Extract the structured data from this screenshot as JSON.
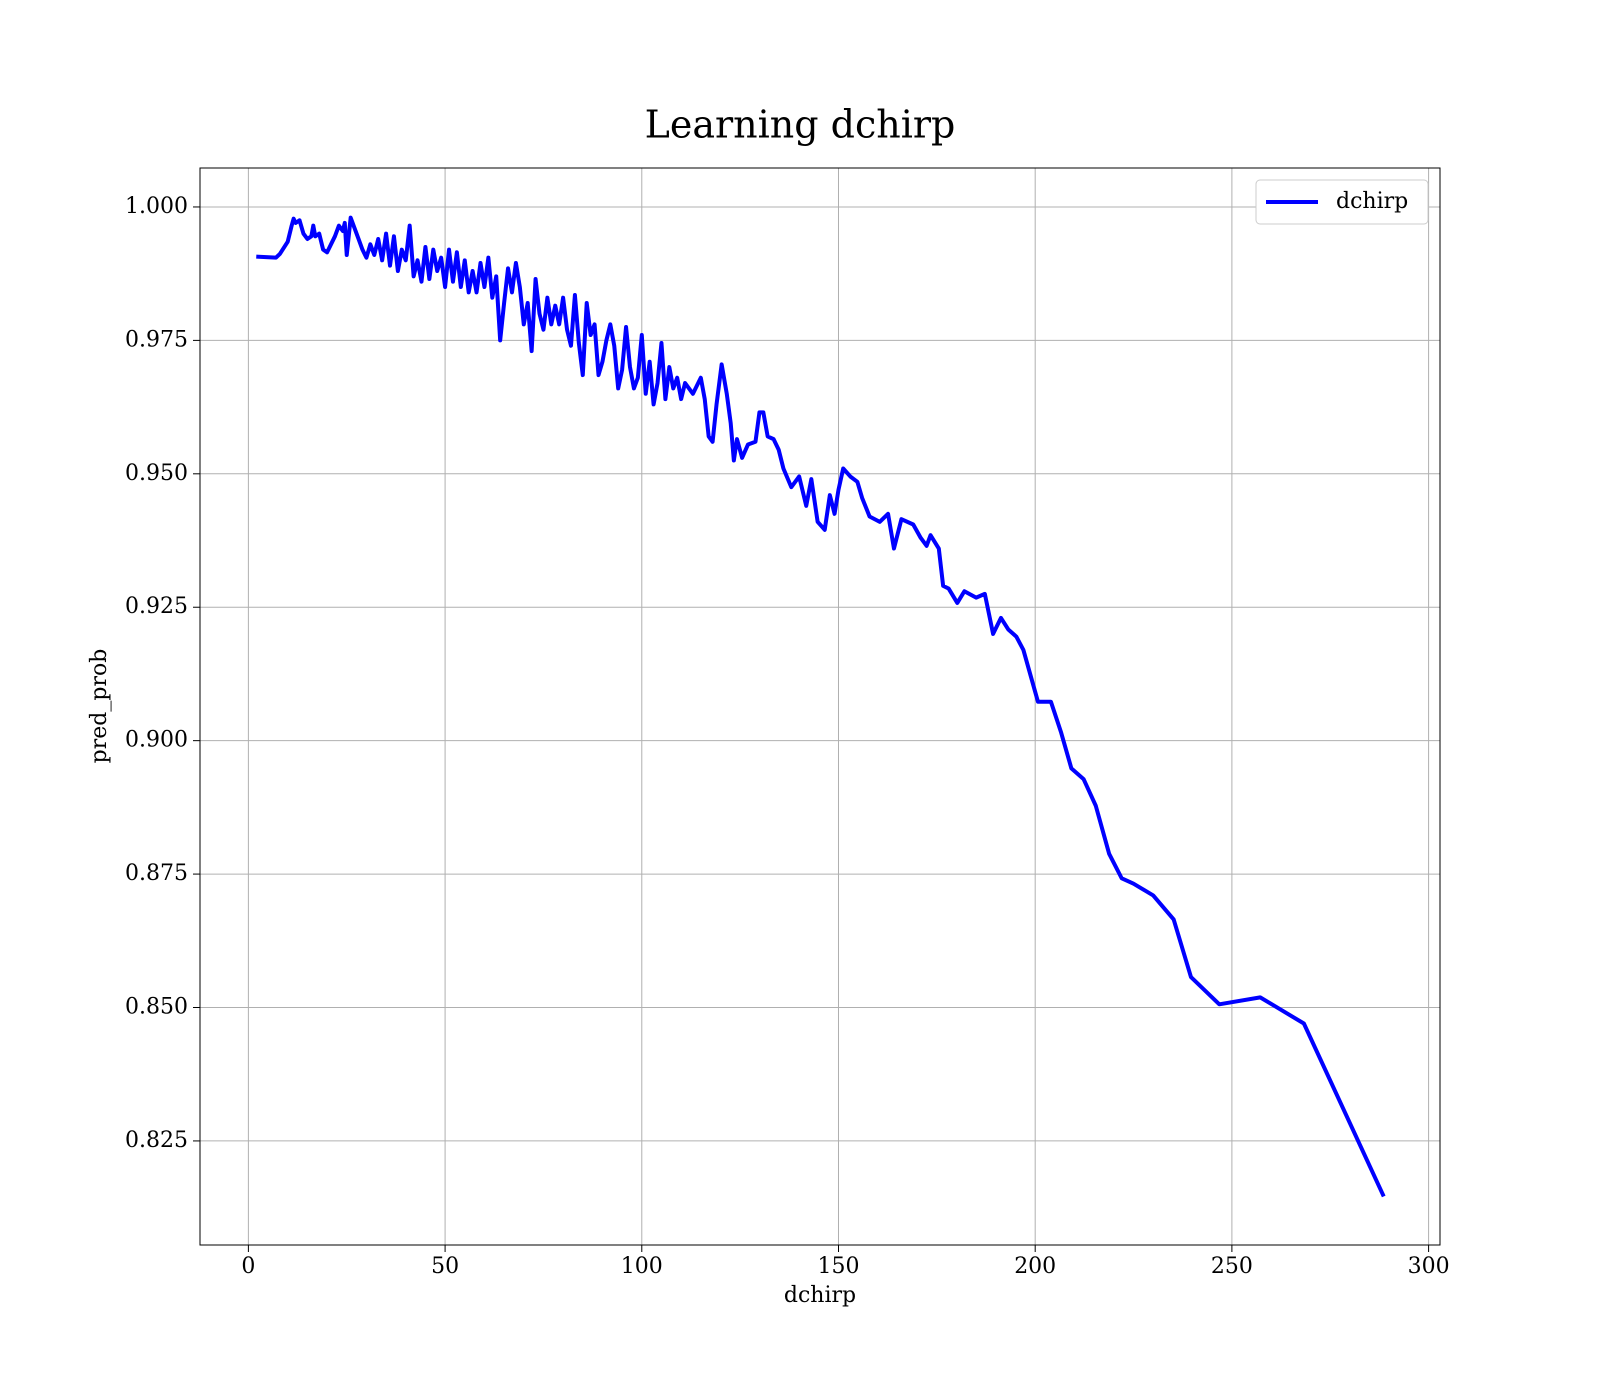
{
  "chart_data": {
    "type": "line",
    "title": "Learning dchirp",
    "x_label": "dchirp",
    "y_label": "pred_prob",
    "xlim": [
      -12.3,
      302.9
    ],
    "ylim": [
      0.8055,
      1.0073
    ],
    "xticks": [
      0,
      50,
      100,
      150,
      200,
      250,
      300
    ],
    "yticks": [
      0.825,
      {
        "value": 0.85,
        "label": "0.850"
      },
      0.875,
      {
        "value": 0.9,
        "label": "0.900"
      },
      0.925,
      {
        "value": 0.95,
        "label": "0.950"
      },
      0.975,
      {
        "value": 1,
        "label": "1.000"
      }
    ],
    "grid": true,
    "legend": "upper right",
    "x": [
      2,
      7,
      8,
      10,
      11,
      11.5,
      12,
      13,
      14,
      15,
      16,
      16.5,
      17,
      18,
      19,
      20,
      21,
      22,
      23,
      24,
      24.5,
      25,
      26,
      27,
      28,
      29,
      30,
      31,
      32,
      33,
      34,
      35,
      36,
      37,
      38,
      39,
      40,
      41,
      42,
      43,
      44,
      45,
      46,
      47,
      48,
      49,
      50,
      51,
      52,
      53,
      54,
      55,
      56,
      57,
      58,
      59,
      60,
      61,
      62,
      63,
      64,
      65,
      66,
      67,
      68,
      69,
      70,
      71,
      72,
      73,
      74,
      75,
      76,
      77,
      78,
      79,
      80,
      81,
      82,
      83,
      84,
      85,
      86,
      87,
      88,
      89,
      90,
      91,
      92,
      93,
      94,
      95,
      96,
      97,
      98,
      99,
      100,
      101,
      102,
      103,
      104,
      105,
      106,
      107,
      108,
      109,
      110,
      111,
      113,
      115,
      116,
      117,
      118,
      119,
      120.3,
      121.6,
      122.6,
      123.4,
      124.2,
      125.5,
      127,
      128.9,
      129.9,
      130.9,
      132,
      133.5,
      134.8,
      136,
      138,
      140,
      141.8,
      143.1,
      144.7,
      146.5,
      147.8,
      149,
      150,
      151.2,
      153,
      154.8,
      156,
      157.9,
      160.5,
      162.6,
      164.1,
      166,
      169,
      170.9,
      172.4,
      173.4,
      175.5,
      176.6,
      178,
      180.2,
      182,
      185,
      187.2,
      189.3,
      191.3,
      193.2,
      195.2,
      197,
      200.7,
      204,
      206.6,
      209.2,
      212.3,
      215.4,
      218.8,
      222,
      225,
      230,
      235.2,
      239.6,
      246.8,
      257.2,
      268.3,
      288.6
    ],
    "series": [
      {
        "name": "dchirp",
        "color": "#0000ff",
        "values": [
          0.9907,
          0.9905,
          0.9912,
          0.9935,
          0.9965,
          0.9978,
          0.997,
          0.9975,
          0.995,
          0.994,
          0.9945,
          0.9965,
          0.9945,
          0.995,
          0.992,
          0.9915,
          0.993,
          0.9945,
          0.9965,
          0.9955,
          0.997,
          0.991,
          0.998,
          0.996,
          0.994,
          0.992,
          0.9905,
          0.993,
          0.991,
          0.994,
          0.99,
          0.995,
          0.989,
          0.9945,
          0.988,
          0.992,
          0.99,
          0.9965,
          0.987,
          0.99,
          0.986,
          0.9925,
          0.9865,
          0.992,
          0.988,
          0.9905,
          0.985,
          0.992,
          0.986,
          0.9915,
          0.985,
          0.99,
          0.984,
          0.988,
          0.984,
          0.9895,
          0.985,
          0.9905,
          0.983,
          0.987,
          0.975,
          0.982,
          0.9885,
          0.984,
          0.9895,
          0.985,
          0.978,
          0.982,
          0.973,
          0.9865,
          0.98,
          0.977,
          0.983,
          0.978,
          0.9815,
          0.978,
          0.983,
          0.977,
          0.974,
          0.9835,
          0.9745,
          0.9685,
          0.982,
          0.976,
          0.978,
          0.9685,
          0.971,
          0.975,
          0.978,
          0.974,
          0.966,
          0.9695,
          0.9775,
          0.97,
          0.966,
          0.968,
          0.976,
          0.965,
          0.971,
          0.963,
          0.967,
          0.9745,
          0.964,
          0.97,
          0.966,
          0.968,
          0.964,
          0.967,
          0.965,
          0.968,
          0.964,
          0.957,
          0.956,
          0.963,
          0.9705,
          0.965,
          0.9595,
          0.9525,
          0.9565,
          0.953,
          0.9555,
          0.956,
          0.9615,
          0.9615,
          0.957,
          0.9565,
          0.9545,
          0.951,
          0.9475,
          0.9495,
          0.944,
          0.949,
          0.941,
          0.9395,
          0.946,
          0.9425,
          0.947,
          0.951,
          0.9495,
          0.9485,
          0.9455,
          0.942,
          0.941,
          0.9425,
          0.936,
          0.9415,
          0.9405,
          0.938,
          0.9365,
          0.9385,
          0.936,
          0.929,
          0.9285,
          0.9258,
          0.928,
          0.9268,
          0.9275,
          0.92,
          0.923,
          0.9208,
          0.9195,
          0.917,
          0.9073,
          0.9073,
          0.9015,
          0.8948,
          0.8928,
          0.8878,
          0.8788,
          0.8742,
          0.8732,
          0.871,
          0.8665,
          0.8557,
          0.8506,
          0.8519,
          0.847,
          0.8146
        ]
      }
    ]
  }
}
